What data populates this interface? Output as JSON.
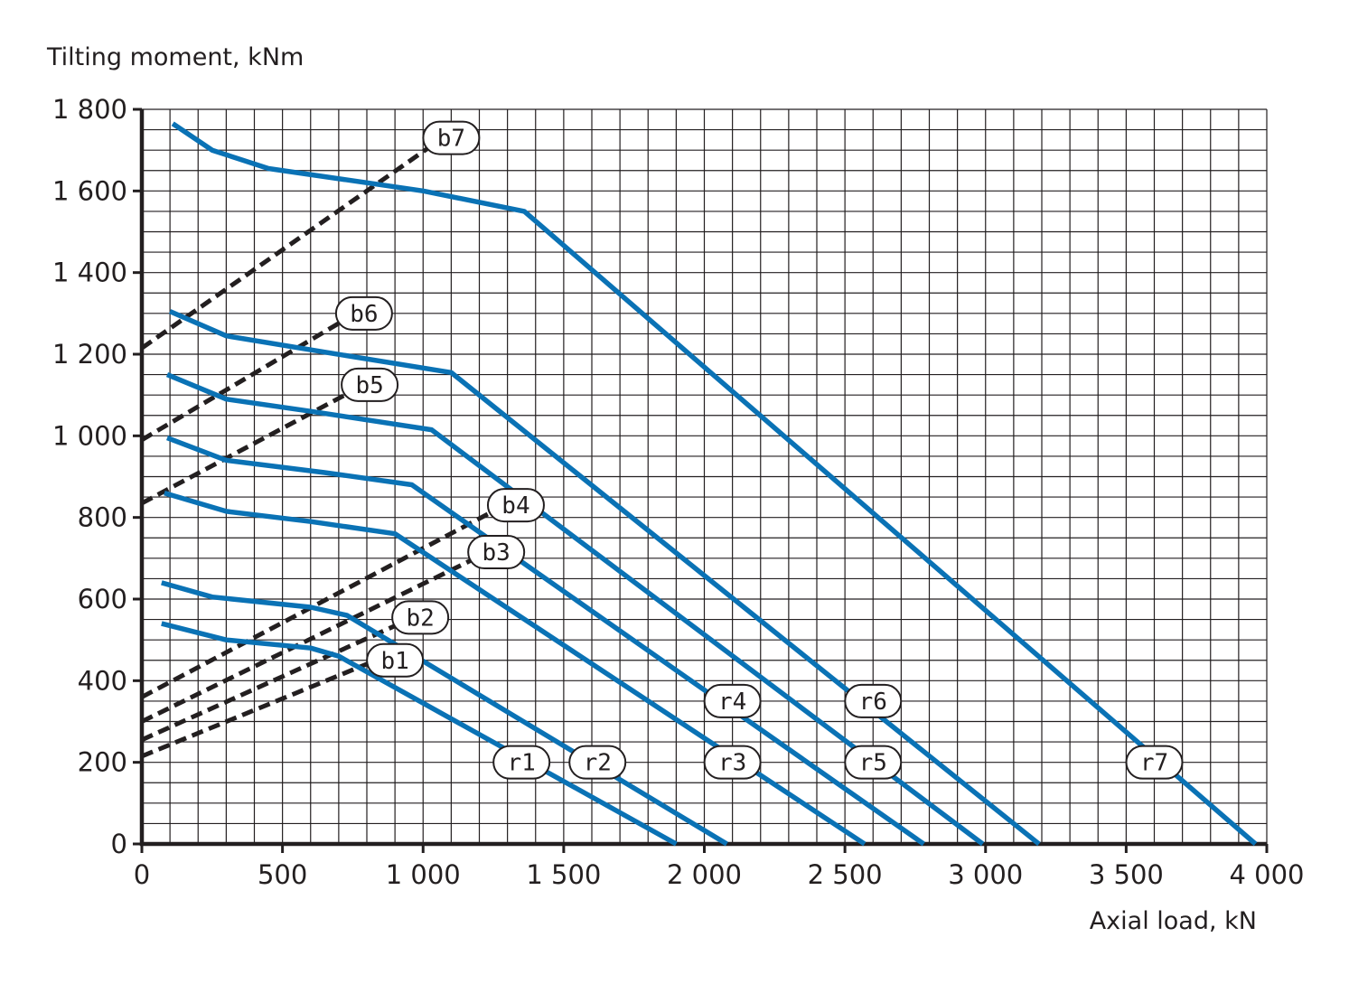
{
  "chart_data": {
    "type": "line",
    "xlabel": "Axial load, kN",
    "ylabel": "Tilting moment, kNm",
    "xlim": [
      0,
      4000
    ],
    "ylim": [
      0,
      1800
    ],
    "x_ticks": [
      0,
      500,
      1000,
      1500,
      2000,
      2500,
      3000,
      3500,
      4000
    ],
    "x_tick_labels": [
      "0",
      "500",
      "1 000",
      "1 500",
      "2 000",
      "2 500",
      "3 000",
      "3 500",
      "4 000"
    ],
    "y_ticks": [
      0,
      200,
      400,
      600,
      800,
      1000,
      1200,
      1400,
      1600,
      1800
    ],
    "y_tick_labels": [
      "0",
      "200",
      "400",
      "600",
      "800",
      "1 000",
      "1 200",
      "1 400",
      "1 600",
      "1 800"
    ],
    "grid": true,
    "grid_minor_x_step": 100,
    "grid_minor_y_step": 50,
    "colors": {
      "raceway": "#0a72b5",
      "bolt": "#231f20",
      "grid": "#231f20"
    },
    "series": [
      {
        "name": "r1",
        "style": "solid",
        "label_at": [
          1350,
          200
        ],
        "x": [
          70,
          300,
          600,
          700,
          1900
        ],
        "y": [
          540,
          500,
          480,
          460,
          0
        ]
      },
      {
        "name": "r2",
        "style": "solid",
        "label_at": [
          1620,
          200
        ],
        "x": [
          70,
          250,
          600,
          730,
          2080
        ],
        "y": [
          640,
          605,
          580,
          560,
          0
        ]
      },
      {
        "name": "r3",
        "style": "solid",
        "label_at": [
          2100,
          200
        ],
        "x": [
          80,
          300,
          600,
          900,
          2570
        ],
        "y": [
          860,
          815,
          790,
          760,
          0
        ]
      },
      {
        "name": "r4",
        "style": "solid",
        "label_at": [
          2100,
          350
        ],
        "x": [
          90,
          300,
          650,
          960,
          2780
        ],
        "y": [
          995,
          940,
          910,
          880,
          0
        ]
      },
      {
        "name": "r5",
        "style": "solid",
        "label_at": [
          2600,
          200
        ],
        "x": [
          90,
          300,
          600,
          1030,
          2990
        ],
        "y": [
          1150,
          1090,
          1060,
          1015,
          0
        ]
      },
      {
        "name": "r6",
        "style": "solid",
        "label_at": [
          2600,
          350
        ],
        "x": [
          100,
          300,
          650,
          1100,
          3190
        ],
        "y": [
          1305,
          1245,
          1205,
          1155,
          0
        ]
      },
      {
        "name": "r7",
        "style": "solid",
        "label_at": [
          3600,
          200
        ],
        "x": [
          110,
          250,
          450,
          1000,
          1360,
          3960
        ],
        "y": [
          1765,
          1700,
          1655,
          1600,
          1550,
          0
        ]
      },
      {
        "name": "b1",
        "style": "dashed",
        "label_at": [
          900,
          450
        ],
        "x": [
          0,
          850
        ],
        "y": [
          215,
          455
        ]
      },
      {
        "name": "b2",
        "style": "dashed",
        "label_at": [
          990,
          555
        ],
        "x": [
          0,
          950
        ],
        "y": [
          255,
          550
        ]
      },
      {
        "name": "b3",
        "style": "dashed",
        "label_at": [
          1260,
          715
        ],
        "x": [
          0,
          1230
        ],
        "y": [
          300,
          715
        ]
      },
      {
        "name": "b4",
        "style": "dashed",
        "label_at": [
          1330,
          830
        ],
        "x": [
          0,
          1290
        ],
        "y": [
          360,
          830
        ]
      },
      {
        "name": "b5",
        "style": "dashed",
        "label_at": [
          810,
          1125
        ],
        "x": [
          0,
          790
        ],
        "y": [
          835,
          1125
        ]
      },
      {
        "name": "b6",
        "style": "dashed",
        "label_at": [
          790,
          1300
        ],
        "x": [
          0,
          760
        ],
        "y": [
          990,
          1300
        ]
      },
      {
        "name": "b7",
        "style": "dashed",
        "label_at": [
          1100,
          1730
        ],
        "x": [
          0,
          1070
        ],
        "y": [
          1215,
          1730
        ]
      }
    ]
  }
}
